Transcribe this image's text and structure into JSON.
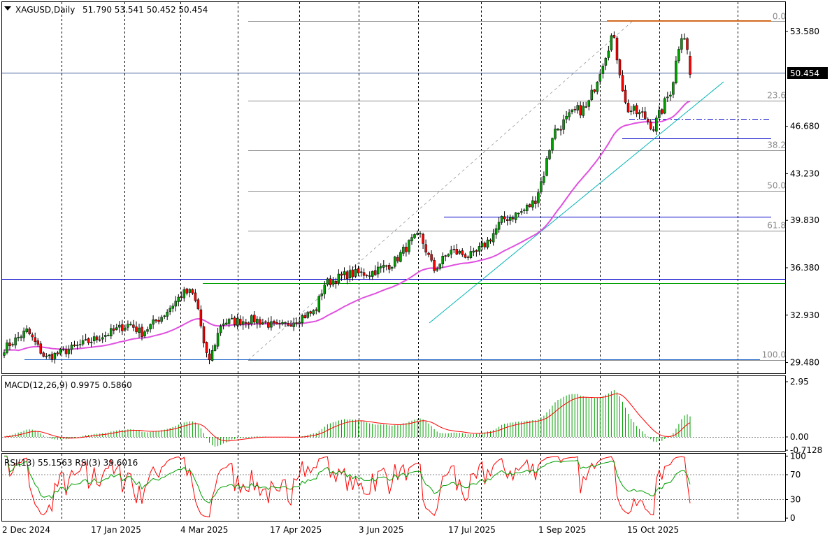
{
  "header": {
    "symbol": "XAGUSD,Daily",
    "ohlc": "51.790 53.541 50.452 50.454",
    "macd_label": "MACD(12,26,9) 0.9975 0.5860",
    "rsi_label": "RSI(13) 55.1563 RSI(3) 39.6016"
  },
  "colors": {
    "bull": "#00a000",
    "bear": "#ff0000",
    "ma": "#e050e0",
    "fib": "#8c8c8c",
    "hline": "#0000c8",
    "resistance": "#d2691e",
    "trend": "#00b4b4",
    "macd_hist": "#00a000",
    "macd_signal": "#ff0000",
    "rsi_fast": "#ff0000",
    "rsi_slow": "#00a000"
  },
  "chart_data": [
    {
      "type": "candlestick",
      "title": "XAGUSD,Daily",
      "x_labels": [
        "2 Dec 2024",
        "17 Jan 2025",
        "4 Mar 2025",
        "17 Apr 2025",
        "3 Jun 2025",
        "17 Jul 2025",
        "1 Sep 2025",
        "15 Oct 2025"
      ],
      "y_ticks": [
        "53.580",
        "46.680",
        "43.230",
        "39.830",
        "36.380",
        "32.930",
        "29.480"
      ],
      "ylim": [
        28.0,
        55.4
      ],
      "current_price": "50.454",
      "current_value": 50.454,
      "fib_levels": [
        "0.0",
        "23.6",
        "38.2",
        "50.0",
        "61.8",
        "100.0"
      ],
      "fib_range": [
        54.35,
        29.66
      ],
      "horizontal_levels": [
        54.35,
        47.35,
        45.75,
        39.05,
        35.05,
        34.8,
        29.66
      ],
      "key_points": [
        {
          "date": "2 Dec 2024",
          "close": 30.6
        },
        {
          "date": "17 Jan 2025",
          "close": 30.2
        },
        {
          "date": "4 Mar 2025",
          "close": 32.5
        },
        {
          "date": "7 Apr 2025",
          "close": 29.7
        },
        {
          "date": "17 Apr 2025",
          "close": 32.6
        },
        {
          "date": "3 Jun 2025",
          "close": 36.1
        },
        {
          "date": "17 Jul 2025",
          "close": 38.0
        },
        {
          "date": "1 Sep 2025",
          "close": 40.7
        },
        {
          "date": "9 Oct 2025",
          "close": 53.5
        },
        {
          "date": "15 Oct 2025",
          "close": 47.9
        },
        {
          "date": "29 Oct 2025",
          "close": 53.8
        },
        {
          "date": "31 Oct 2025",
          "close": 50.454
        }
      ]
    },
    {
      "type": "bar",
      "title": "MACD(12,26,9) 0.9975 0.5860",
      "y_ticks": [
        "2.95",
        "0.00",
        "-0.7128"
      ],
      "ylim": [
        -0.7128,
        3.2
      ],
      "macd": 0.9975,
      "signal": 0.586
    },
    {
      "type": "line",
      "title": "RSI(13) 55.1563 RSI(3) 39.6016",
      "y_ticks": [
        "100",
        "70",
        "30",
        "0"
      ],
      "ylim": [
        0,
        100
      ],
      "rsi13": 55.1563,
      "rsi3": 39.6016
    }
  ]
}
